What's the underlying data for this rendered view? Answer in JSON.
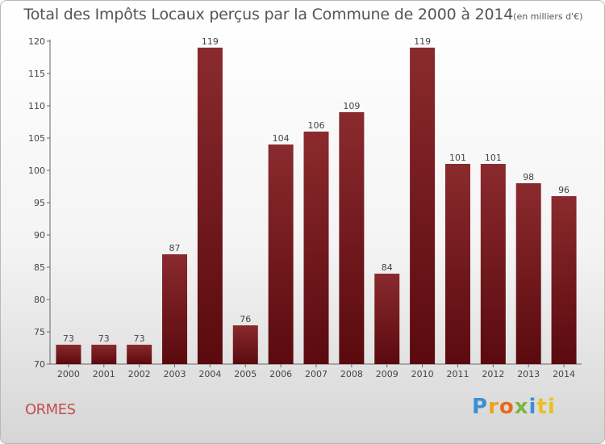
{
  "chart_data": {
    "type": "bar",
    "title": "Total des Impôts Locaux perçus par la Commune de 2000 à 2014",
    "subtitle": "(en milliers d'€)",
    "categories": [
      "2000",
      "2001",
      "2002",
      "2003",
      "2004",
      "2005",
      "2006",
      "2007",
      "2008",
      "2009",
      "2010",
      "2011",
      "2012",
      "2013",
      "2014"
    ],
    "values": [
      73,
      73,
      73,
      87,
      119,
      76,
      104,
      106,
      109,
      84,
      119,
      101,
      101,
      98,
      96
    ],
    "yticks": [
      70,
      75,
      80,
      85,
      90,
      95,
      100,
      105,
      110,
      115,
      120
    ],
    "ylim": [
      70,
      120
    ],
    "grid": false,
    "bar_color": "#7a1e22"
  },
  "footer": {
    "commune": "ORMES",
    "logo": [
      "P",
      "r",
      "o",
      "x",
      "i",
      "ti"
    ]
  }
}
